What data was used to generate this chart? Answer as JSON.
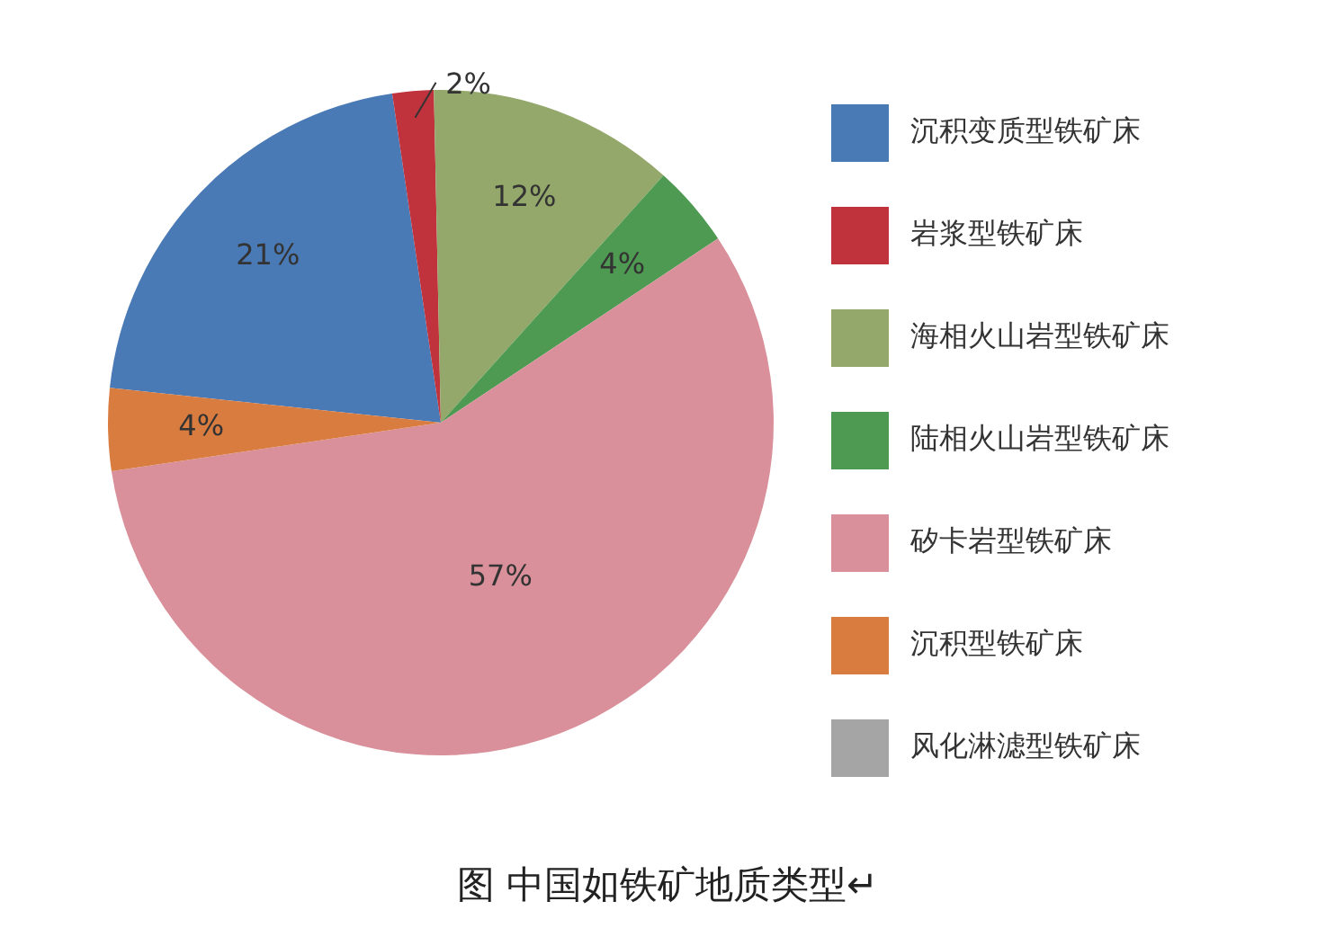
{
  "chart_data": {
    "type": "pie",
    "title": "图  中国如铁矿地质类型↵",
    "categories": [
      "沉积变质型铁矿床",
      "岩浆型铁矿床",
      "海相火山岩型铁矿床",
      "陆相火山岩型铁矿床",
      "矽卡岩型铁矿床",
      "沉积型铁矿床",
      "风化淋滤型铁矿床"
    ],
    "values": [
      21,
      2,
      12,
      4,
      57,
      4,
      0
    ],
    "value_labels": [
      "21%",
      "2%",
      "12%",
      "4%",
      "57%",
      "4%",
      null
    ],
    "colors": [
      "#4a7ab5",
      "#c0323c",
      "#93a86a",
      "#4e9a52",
      "#d9909a",
      "#d97c40",
      "#a5a5a5"
    ],
    "legend": "right"
  }
}
